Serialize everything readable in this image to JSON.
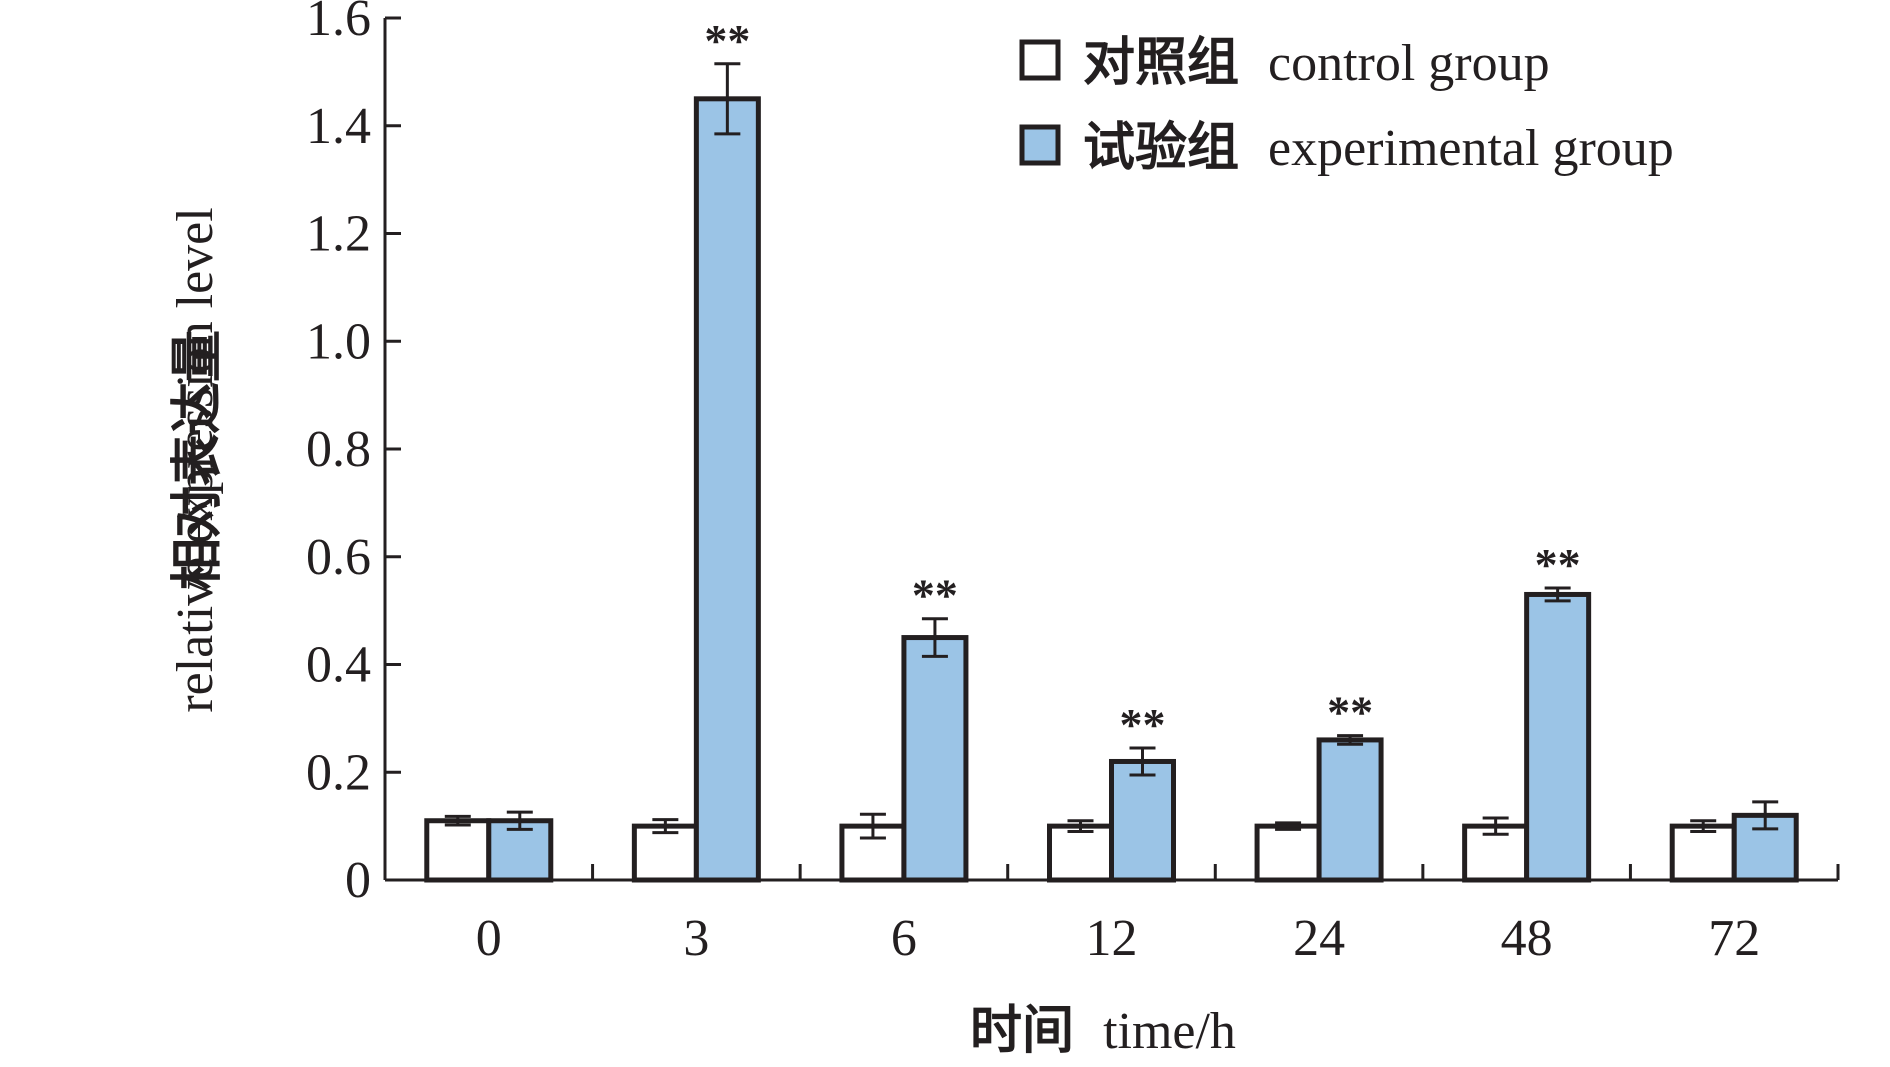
{
  "chart_data": {
    "type": "bar",
    "title": "",
    "xlabel_cn": "时间",
    "xlabel_en": "time/h",
    "ylabel_cn": "相对表达量",
    "ylabel_en": "relative expression level",
    "ylim": [
      0,
      1.6
    ],
    "yticks": [
      "0",
      "0.2",
      "0.4",
      "0.6",
      "0.8",
      "1.0",
      "1.2",
      "1.4",
      "1.6"
    ],
    "categories": [
      "0",
      "3",
      "6",
      "12",
      "24",
      "48",
      "72"
    ],
    "grid": false,
    "legend_position": "top-right",
    "series": [
      {
        "name_cn": "对照组",
        "name_en": "control group",
        "color": "#ffffff",
        "values": [
          0.11,
          0.1,
          0.1,
          0.1,
          0.1,
          0.1,
          0.1
        ],
        "errors": [
          0.008,
          0.012,
          0.022,
          0.01,
          0.006,
          0.015,
          0.01
        ],
        "significance": [
          "",
          "",
          "",
          "",
          "",
          "",
          ""
        ]
      },
      {
        "name_cn": "试验组",
        "name_en": "experimental group",
        "color": "#9bc4e6",
        "values": [
          0.11,
          1.45,
          0.45,
          0.22,
          0.26,
          0.53,
          0.12
        ],
        "errors": [
          0.016,
          0.065,
          0.035,
          0.025,
          0.008,
          0.012,
          0.025
        ],
        "significance": [
          "",
          "**",
          "**",
          "**",
          "**",
          "**",
          ""
        ]
      }
    ]
  }
}
